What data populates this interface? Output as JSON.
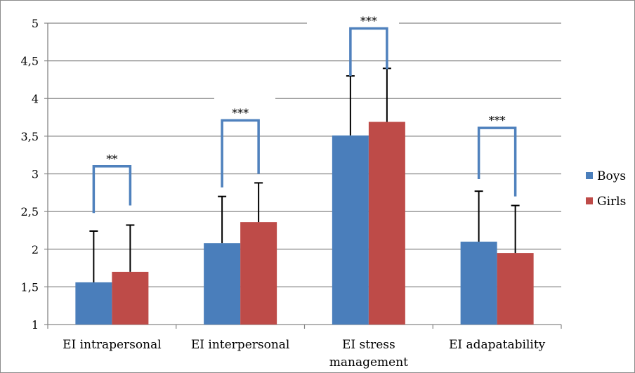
{
  "chart_data": {
    "type": "bar",
    "categories": [
      "EI intrapersonal",
      "EI interpersonal",
      "EI stress management",
      "EI adapatability"
    ],
    "category_lines": [
      [
        "EI intrapersonal"
      ],
      [
        "EI interpersonal"
      ],
      [
        "EI stress",
        "management"
      ],
      [
        "EI adapatability"
      ]
    ],
    "series": [
      {
        "name": "Boys",
        "values": [
          1.56,
          2.08,
          3.51,
          2.1
        ],
        "error": [
          0.68,
          0.62,
          0.79,
          0.67
        ]
      },
      {
        "name": "Girls",
        "values": [
          1.7,
          2.36,
          3.69,
          1.95
        ],
        "error": [
          0.62,
          0.52,
          0.71,
          0.63
        ]
      }
    ],
    "ylim": [
      1,
      5
    ],
    "yticks": [
      1,
      1.5,
      2,
      2.5,
      3,
      3.5,
      4,
      4.5,
      5
    ],
    "ytick_labels": [
      "1",
      "1,5",
      "2",
      "2,5",
      "3",
      "3,5",
      "4",
      "4,5",
      "5"
    ],
    "significance": [
      "**",
      "***",
      "***",
      "***"
    ],
    "significance_bracket_level": [
      3.1,
      3.71,
      4.93,
      3.61
    ],
    "significance_bracket_feet": [
      [
        2.48,
        2.58
      ],
      [
        2.82,
        3.0
      ],
      [
        4.3,
        4.39
      ],
      [
        2.93,
        2.7
      ]
    ],
    "grid": true,
    "legend_position": "right",
    "title": "",
    "xlabel": "",
    "ylabel": ""
  },
  "colors": {
    "Boys": "#4a7ebb",
    "Girls": "#be4b48",
    "bracket": "#4f81bd",
    "grid": "#868686",
    "axis": "#868686",
    "error_bar": "#000000"
  }
}
